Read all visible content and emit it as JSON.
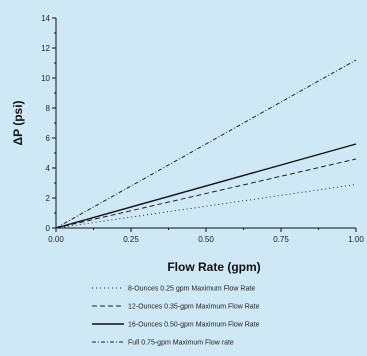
{
  "chart_data": {
    "type": "line",
    "xlabel": "Flow Rate (gpm)",
    "ylabel": "ΔP (psi)",
    "xlim": [
      0,
      1.0
    ],
    "ylim": [
      0,
      14
    ],
    "x_ticks": [
      0.0,
      0.25,
      0.5,
      0.75,
      1.0
    ],
    "x_tick_labels": [
      "0.00",
      "0.25",
      "0.50",
      "0.75",
      "1.00"
    ],
    "y_ticks": [
      0,
      2,
      4,
      6,
      8,
      10,
      12,
      14
    ],
    "y_tick_labels": [
      "0",
      "2",
      "4",
      "6",
      "8",
      "10",
      "12",
      "14"
    ],
    "grid": false,
    "legend_position": "bottom",
    "series": [
      {
        "name": "8-Ounces 0.25 gpm Maximum Flow Rate",
        "x": [
          0,
          1.0
        ],
        "y": [
          0,
          2.9
        ],
        "dash": "1,3",
        "color": "#222222"
      },
      {
        "name": "12-Ounces 0.35-gpm Maximum Flow Rate",
        "x": [
          0,
          1.0
        ],
        "y": [
          0,
          4.6
        ],
        "dash": "5,3",
        "color": "#222222"
      },
      {
        "name": "16-Ounces 0.50-gpm Maximum Flow Rate",
        "x": [
          0,
          1.0
        ],
        "y": [
          0,
          5.6
        ],
        "dash": "",
        "color": "#111111"
      },
      {
        "name": "Full 0.75-gpm Maximum Flow rate",
        "x": [
          0,
          1.0
        ],
        "y": [
          0,
          11.2
        ],
        "dash": "4,2,1,2",
        "color": "#222222"
      }
    ]
  }
}
